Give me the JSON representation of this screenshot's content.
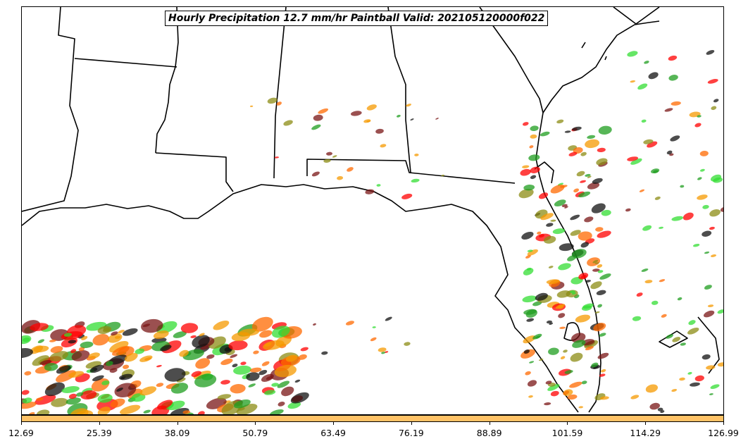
{
  "title": "Hourly Precipitation 12.7 mm/hr Paintball Valid: 202105120000f022",
  "colorbar": {
    "color": "#FFC266",
    "ticks": [
      "12.69",
      "25.39",
      "38.09",
      "50.79",
      "63.49",
      "76.19",
      "88.89",
      "101.59",
      "114.29",
      "126.99"
    ]
  },
  "paint_colors": [
    "#ff0000",
    "#ff6a00",
    "#f59a00",
    "#8c8c14",
    "#1f9d1f",
    "#33dd33",
    "#7a1515",
    "#111111"
  ]
}
